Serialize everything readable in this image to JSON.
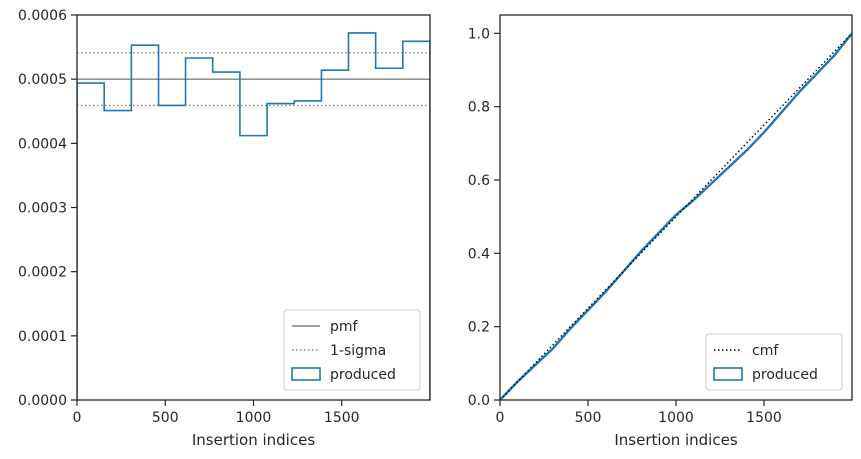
{
  "chart_data": [
    {
      "type": "step",
      "xlabel": "Insertion indices",
      "ylabel": "",
      "xlim": [
        0,
        2000
      ],
      "ylim": [
        0,
        0.0006
      ],
      "xticks": [
        0,
        500,
        1000,
        1500
      ],
      "xtick_labels": [
        "0",
        "500",
        "1000",
        "1500"
      ],
      "yticks": [
        0,
        0.0001,
        0.0002,
        0.0003,
        0.0004,
        0.0005,
        0.0006
      ],
      "ytick_labels": [
        "0.0000",
        "0.0001",
        "0.0002",
        "0.0003",
        "0.0004",
        "0.0005",
        "0.0006"
      ],
      "pmf": 0.0005,
      "sigma_band": [
        0.000459,
        0.000541
      ],
      "bin_edges": [
        0,
        154,
        308,
        462,
        615,
        769,
        923,
        1077,
        1231,
        1385,
        1538,
        1692,
        1846,
        2000
      ],
      "produced": [
        0.000494,
        0.000451,
        0.000553,
        0.000459,
        0.000533,
        0.000511,
        0.000412,
        0.000462,
        0.000466,
        0.000514,
        0.000572,
        0.000517,
        0.000559
      ],
      "legend": {
        "position": "lower right",
        "entries": [
          {
            "label": "pmf",
            "style": "solid",
            "color": "#808080"
          },
          {
            "label": "1-sigma",
            "style": "dotted",
            "color": "#808080"
          },
          {
            "label": "produced",
            "style": "patch",
            "color": "#1f77b4"
          }
        ]
      }
    },
    {
      "type": "line",
      "xlabel": "Insertion indices",
      "ylabel": "",
      "xlim": [
        0,
        2000
      ],
      "ylim": [
        0,
        1.05
      ],
      "xticks": [
        0,
        500,
        1000,
        1500
      ],
      "xtick_labels": [
        "0",
        "500",
        "1000",
        "1500"
      ],
      "yticks": [
        0,
        0.2,
        0.4,
        0.6,
        0.8,
        1.0
      ],
      "ytick_labels": [
        "0.0",
        "0.2",
        "0.4",
        "0.6",
        "0.8",
        "1.0"
      ],
      "cmf": {
        "x": [
          0,
          2000
        ],
        "y": [
          0,
          1.0
        ]
      },
      "produced": {
        "x": [
          0,
          100,
          200,
          300,
          400,
          500,
          600,
          700,
          800,
          900,
          1000,
          1100,
          1200,
          1300,
          1400,
          1500,
          1600,
          1700,
          1800,
          1900,
          2000
        ],
        "y": [
          0,
          0.05,
          0.095,
          0.14,
          0.195,
          0.245,
          0.295,
          0.35,
          0.405,
          0.455,
          0.505,
          0.545,
          0.59,
          0.635,
          0.68,
          0.73,
          0.785,
          0.84,
          0.89,
          0.94,
          1.0
        ]
      },
      "legend": {
        "position": "lower right",
        "entries": [
          {
            "label": "cmf",
            "style": "dotted",
            "color": "#000000"
          },
          {
            "label": "produced",
            "style": "patch",
            "color": "#1f77b4"
          }
        ]
      }
    }
  ]
}
